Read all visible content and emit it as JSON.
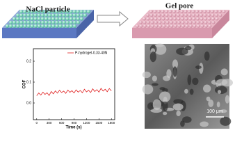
{
  "figure": {
    "left_label": "NaCl particle",
    "right_label": "Gel pore",
    "scale_bar": "100 μm"
  },
  "chart_data": {
    "type": "line",
    "ylabel": "COF",
    "xlabel": "Time (s)",
    "xlim": [
      -80,
      1880
    ],
    "xticks": [
      0,
      300,
      600,
      900,
      1200,
      1500,
      1800
    ],
    "ylim": [
      -0.08,
      0.26
    ],
    "yticks": [
      {
        "value": 0,
        "label": "0.0"
      },
      0.1,
      0.2
    ],
    "legend": "top",
    "x": [
      0,
      50,
      100,
      150,
      200,
      250,
      300,
      350,
      400,
      450,
      500,
      550,
      600,
      650,
      700,
      750,
      800,
      850,
      900,
      950,
      1000,
      1050,
      1100,
      1150,
      1200,
      1250,
      1300,
      1350,
      1400,
      1450,
      1500,
      1550,
      1600,
      1650,
      1700,
      1750,
      1800
    ],
    "series": [
      {
        "name": "P-hydrogel-0.33-40N",
        "color": "#e02020",
        "values": [
          0.035,
          0.048,
          0.038,
          0.052,
          0.041,
          0.049,
          0.036,
          0.055,
          0.044,
          0.058,
          0.047,
          0.061,
          0.05,
          0.057,
          0.046,
          0.062,
          0.051,
          0.059,
          0.048,
          0.063,
          0.052,
          0.06,
          0.049,
          0.066,
          0.053,
          0.061,
          0.05,
          0.068,
          0.055,
          0.064,
          0.052,
          0.07,
          0.057,
          0.066,
          0.054,
          0.069,
          0.058
        ]
      }
    ]
  }
}
